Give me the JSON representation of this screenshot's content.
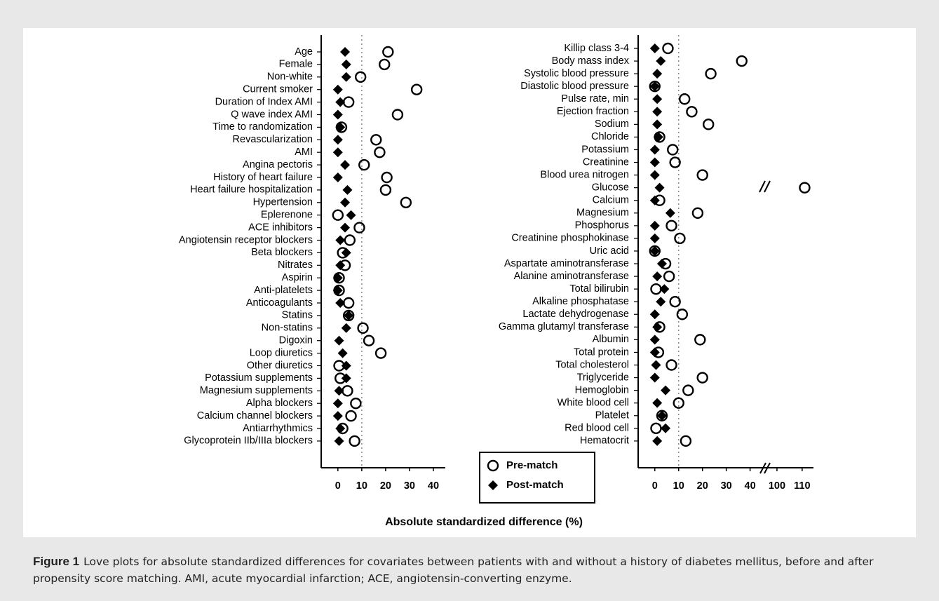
{
  "chart_data": [
    {
      "type": "dot",
      "categories": [
        "Age",
        "Female",
        "Non-white",
        "Current smoker",
        "Duration of Index AMI",
        "Q wave index AMI",
        "Time to randomization",
        "Revascularization",
        "AMI",
        "Angina pectoris",
        "History of heart failure",
        "Heart failure hospitalization",
        "Hypertension",
        "Eplerenone",
        "ACE inhibitors",
        "Angiotensin receptor blockers",
        "Beta blockers",
        "Nitrates",
        "Aspirin",
        "Anti-platelets",
        "Anticoagulants",
        "Statins",
        "Non-statins",
        "Digoxin",
        "Loop diuretics",
        "Other diuretics",
        "Potassium supplements",
        "Magnesium supplements",
        "Alpha blockers",
        "Calcium channel blockers",
        "Antiarrhythmics",
        "Glycoprotein IIb/IIIa blockers"
      ],
      "series": [
        {
          "name": "Pre-match",
          "marker": "open-circle",
          "color": "#000000",
          "values": [
            21,
            19.5,
            9.5,
            33,
            4.5,
            25,
            1.5,
            16,
            17.5,
            11,
            20.5,
            20,
            28.5,
            0,
            9,
            5,
            2,
            3,
            0.5,
            0.5,
            4.5,
            4.5,
            10.5,
            13,
            18,
            0.5,
            1,
            4,
            7.5,
            5.5,
            2,
            7
          ]
        },
        {
          "name": "Post-match",
          "marker": "diamond",
          "color": "#000000",
          "values": [
            3,
            3.5,
            3.5,
            0,
            1,
            0,
            1,
            0,
            0,
            3,
            0,
            4,
            3,
            5.5,
            3,
            1,
            3.5,
            1,
            0,
            0,
            1,
            4.5,
            3.5,
            0.5,
            2,
            3.5,
            3.5,
            0.5,
            0,
            0,
            1,
            0.5
          ]
        }
      ],
      "xlim": [
        -7,
        45
      ],
      "xticks": [
        0,
        10,
        20,
        30,
        40
      ],
      "reference_line": 10
    },
    {
      "type": "dot",
      "categories": [
        "Killip class 3-4",
        "Body mass index",
        "Systolic blood pressure",
        "Diastolic blood pressure",
        "Pulse rate, min",
        "Ejection fraction",
        "Sodium",
        "Chloride",
        "Potassium",
        "Creatinine",
        "Blood urea nitrogen",
        "Glucose",
        "Calcium",
        "Magnesium",
        "Phosphorus",
        "Creatinine phosphokinase",
        "Uric acid",
        "Aspartate aminotransferase",
        "Alanine aminotransferase",
        "Total bilirubin",
        "Alkaline phosphatase",
        "Lactate dehydrogenase",
        "Gamma glutamyl transferase",
        "Albumin",
        "Total protein",
        "Total cholesterol",
        "Triglyceride",
        "Hemoglobin",
        "White blood cell",
        "Platelet",
        "Red blood cell",
        "Hematocrit"
      ],
      "series": [
        {
          "marker": "open-circle",
          "color": "#000000",
          "values": [
            5.5,
            36.5,
            23.5,
            0,
            12.5,
            15.5,
            22.5,
            2,
            7.5,
            8.5,
            20,
            111,
            2,
            18,
            7,
            10.5,
            0,
            4.5,
            6,
            0.5,
            8.5,
            11.5,
            2,
            19,
            1.5,
            7,
            20,
            14,
            10,
            3,
            0.5,
            13
          ]
        },
        {
          "marker": "diamond",
          "color": "#000000",
          "values": [
            0,
            2.5,
            1,
            0,
            1,
            1,
            1,
            1.5,
            0,
            0,
            0,
            2,
            0,
            6.5,
            0,
            0,
            0,
            3,
            1,
            4,
            2.5,
            0,
            1,
            0,
            0,
            0.5,
            0,
            4.5,
            1,
            3,
            4.5,
            1
          ]
        }
      ],
      "xlim": [
        -7,
        46
      ],
      "xticks": [
        0,
        10,
        20,
        30,
        40
      ],
      "xlim_break": [
        95,
        114.5
      ],
      "xticks_break": [
        100,
        110
      ],
      "reference_line": 10
    }
  ],
  "xlabel": "Absolute standardized difference (%)",
  "caption": {
    "label": "Figure 1",
    "text": "Love plots for absolute standardized differences for covariates between patients with and without a history of diabetes mellitus, before and after propensity score matching. AMI, acute myocardial infarction; ACE, angiotensin-converting enzyme."
  }
}
